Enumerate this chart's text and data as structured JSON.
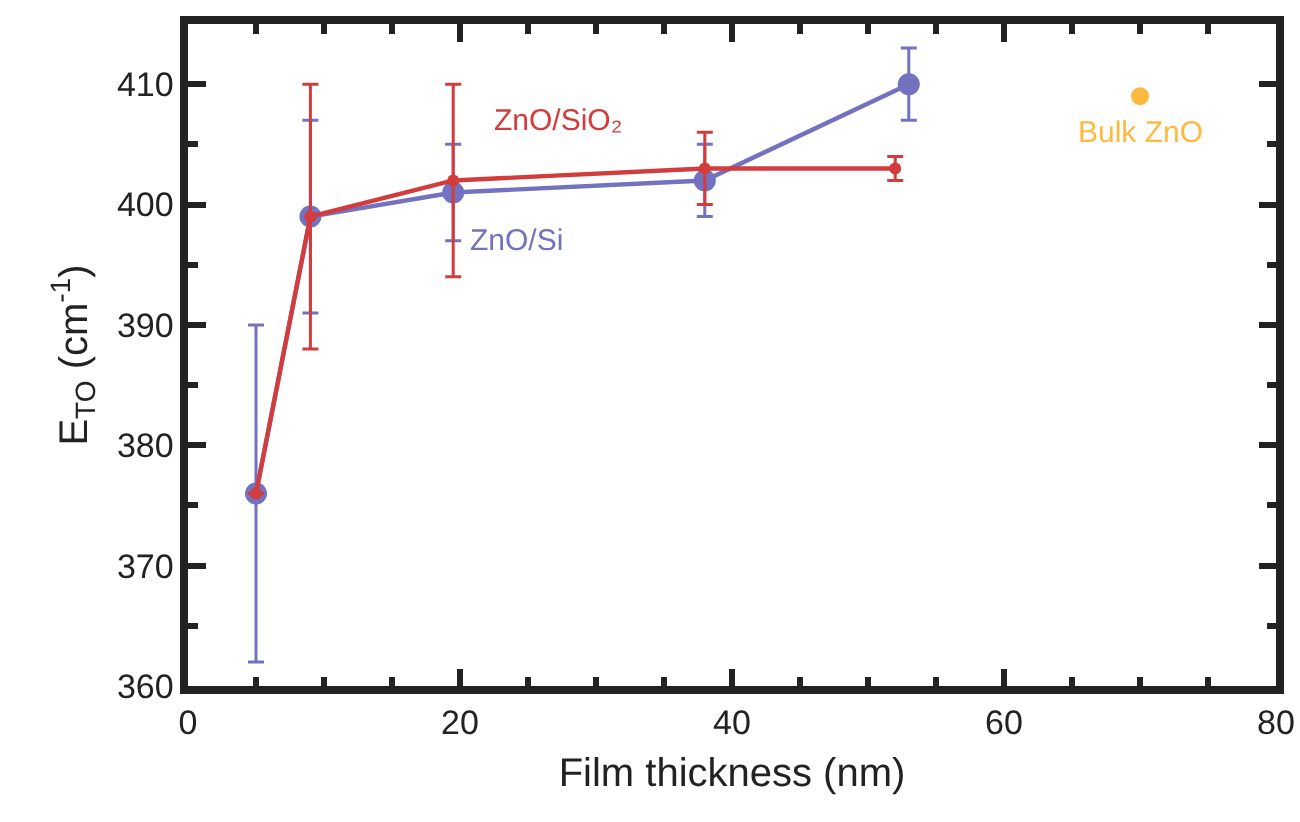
{
  "chart_data": {
    "type": "line",
    "xlabel": "Film thickness (nm)",
    "ylabel": "E$_{TO}$ (cm$^{-1}$)",
    "xlim": [
      0,
      80
    ],
    "xticks": [
      0,
      20,
      40,
      60,
      80
    ],
    "ylim": [
      360,
      415
    ],
    "yticks": [
      360,
      370,
      380,
      390,
      400,
      410
    ],
    "grid": false,
    "legend": false,
    "marker": "circle",
    "line_style": "solid",
    "series": [
      {
        "name": "ZnO/Si",
        "color": "#7272c0",
        "x": [
          5,
          9,
          19.5,
          38,
          53
        ],
        "values": [
          376,
          399,
          401,
          402,
          410
        ],
        "errors": [
          [
            362,
            390
          ],
          [
            391,
            407
          ],
          [
            397,
            405
          ],
          [
            399,
            405
          ],
          [
            407,
            413
          ]
        ]
      },
      {
        "name": "ZnO/SiO₂",
        "color": "#d23c3c",
        "x": [
          5,
          9,
          19.5,
          38,
          52
        ],
        "values": [
          376,
          399,
          402,
          403,
          403
        ],
        "errors": [
          null,
          [
            388,
            410
          ],
          [
            394,
            410
          ],
          [
            400,
            406
          ],
          [
            402,
            404
          ]
        ]
      },
      {
        "name": "Bulk ZnO",
        "type": "scatter",
        "color": "#ffb840",
        "x": [
          70
        ],
        "values": [
          409
        ]
      }
    ]
  }
}
